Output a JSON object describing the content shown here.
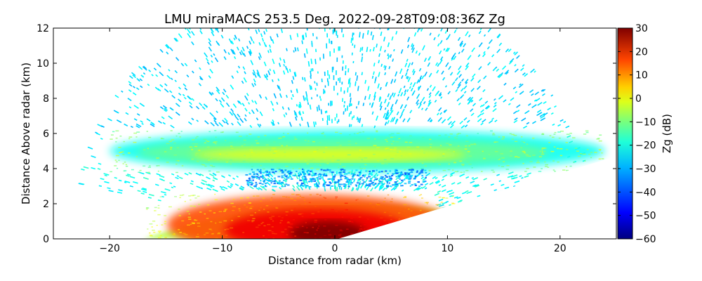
{
  "chart_data": {
    "type": "heatmap",
    "title": "LMU miraMACS 253.5 Deg. 2022-09-28T09:08:36Z  Zg",
    "xlabel": "Distance from radar (km)",
    "ylabel": "Distance Above radar  (km)",
    "xlim": [
      -25,
      25
    ],
    "ylim": [
      0,
      12
    ],
    "x_ticks": [
      -20,
      -10,
      0,
      10,
      20
    ],
    "x_tick_labels": [
      "−20",
      "−10",
      "0",
      "10",
      "20"
    ],
    "y_ticks": [
      0,
      2,
      4,
      6,
      8,
      10,
      12
    ],
    "y_tick_labels": [
      "0",
      "2",
      "4",
      "6",
      "8",
      "10",
      "12"
    ],
    "colorbar": {
      "label": "Zg (dB)",
      "colormap": "jet",
      "range": [
        -60,
        30
      ],
      "ticks": [
        30,
        20,
        10,
        0,
        -10,
        -20,
        -30,
        -40,
        -50,
        -60
      ],
      "tick_labels": [
        "30",
        "20",
        "10",
        "0",
        "−10",
        "−20",
        "−30",
        "−40",
        "−50",
        "−60"
      ]
    },
    "features": [
      {
        "name": "clear-air-noise",
        "zg_db": -25,
        "x_range": [
          -24,
          23
        ],
        "z_range": [
          0.5,
          12
        ]
      },
      {
        "name": "upper-cloud-layer",
        "zg_db": -17,
        "x_range": [
          -20,
          24
        ],
        "z_range": [
          3.8,
          6.2
        ],
        "peak_zg_db": -5
      },
      {
        "name": "low-precipitation-core",
        "zg_db": 20,
        "x_range": [
          -17,
          11
        ],
        "z_range": [
          0,
          2.6
        ],
        "peak_zg_db": 30
      },
      {
        "name": "mid-level-weak-echo",
        "zg_db": -35,
        "x_range": [
          -8,
          8
        ],
        "z_range": [
          3.0,
          4.0
        ]
      }
    ]
  }
}
